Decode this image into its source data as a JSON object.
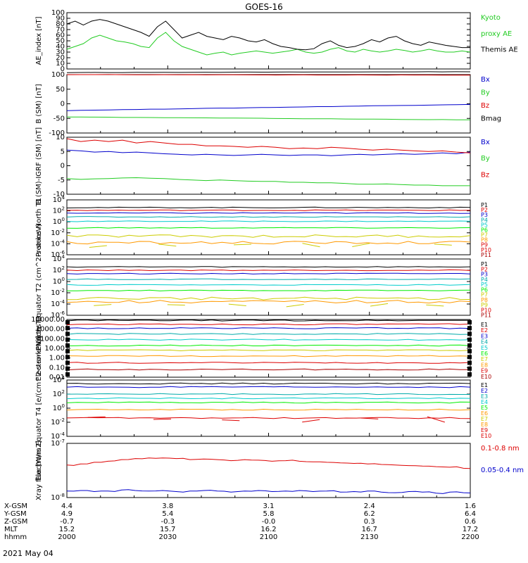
{
  "title": "GOES-16",
  "date_label": "2021 May 04",
  "colors": {
    "black": "#000000",
    "red": "#dd0000",
    "green": "#22cc22",
    "blue": "#0000cc",
    "lime": "#00ee00",
    "cyan": "#00cccc",
    "aqua": "#00dddd",
    "teal": "#00aaaa",
    "yellow": "#cccc00",
    "orange": "#ff9900",
    "darkred": "#aa0000"
  },
  "ephemeris": {
    "labels": [
      "X-GSM",
      "Y-GSM",
      "Z-GSM",
      "MLT",
      "hhmm"
    ],
    "rows": [
      [
        "4.4",
        "3.8",
        "3.1",
        "2.4",
        "1.6"
      ],
      [
        "4.9",
        "5.4",
        "5.8",
        "6.2",
        "6.4"
      ],
      [
        "-0.7",
        "-0.3",
        "-0.0",
        "0.3",
        "0.6"
      ],
      [
        "15.2",
        "15.7",
        "16.2",
        "16.7",
        "17.2"
      ],
      [
        "2000",
        "2030",
        "2100",
        "2130",
        "2200"
      ]
    ]
  },
  "chart_data": [
    {
      "type": "line",
      "ylabel": "AE_index [nT]",
      "ylim": [
        0,
        100
      ],
      "yticks": [
        "0",
        "10",
        "20",
        "30",
        "40",
        "50",
        "60",
        "70",
        "80",
        "90",
        "100"
      ],
      "series": [
        {
          "name": "Kyoto proxy AE",
          "color": "#22cc22",
          "values": [
            35,
            40,
            45,
            55,
            60,
            55,
            50,
            48,
            45,
            40,
            38,
            55,
            65,
            50,
            40,
            35,
            30,
            25,
            28,
            30,
            25,
            28,
            30,
            32,
            30,
            28,
            30,
            32,
            35,
            30,
            28,
            30,
            35,
            38,
            32,
            30,
            35,
            32,
            30,
            32,
            35,
            33,
            30,
            32,
            35,
            32,
            30,
            30,
            32,
            30
          ]
        },
        {
          "name": "Themis AE",
          "color": "#000000",
          "values": [
            80,
            85,
            78,
            85,
            88,
            85,
            80,
            75,
            70,
            65,
            58,
            75,
            85,
            70,
            55,
            60,
            65,
            58,
            55,
            52,
            58,
            55,
            50,
            48,
            52,
            45,
            40,
            38,
            35,
            34,
            36,
            45,
            50,
            42,
            38,
            40,
            45,
            52,
            48,
            55,
            58,
            50,
            45,
            42,
            48,
            45,
            42,
            40,
            38,
            38
          ]
        }
      ]
    },
    {
      "type": "line",
      "ylabel": "B (SM) [nT]",
      "ylim": [
        -100,
        100
      ],
      "yticks": [
        "-100",
        "-50",
        "0",
        "50",
        "100"
      ],
      "series": [
        {
          "name": "Bx",
          "color": "#0000cc",
          "start": -23,
          "end": -2
        },
        {
          "name": "By",
          "color": "#22cc22",
          "start": -45,
          "end": -55
        },
        {
          "name": "Bz",
          "color": "#dd0000",
          "start": 100,
          "end": 98
        },
        {
          "name": "Bmag",
          "color": "#000000",
          "start": 107,
          "end": 110
        }
      ]
    },
    {
      "type": "line",
      "ylabel": "B (SM)-IGRF (SM) [nT]",
      "ylim": [
        -10,
        10
      ],
      "yticks": [
        "-10",
        "-5",
        "0",
        "5",
        "10"
      ],
      "series": [
        {
          "name": "Bx",
          "color": "#0000cc",
          "values": [
            5.5,
            5.2,
            4.8,
            5.0,
            4.6,
            4.8,
            4.5,
            4.2,
            4.0,
            3.8,
            4.0,
            3.8,
            3.6,
            3.8,
            4.0,
            3.8,
            3.6,
            3.8,
            3.8,
            3.5,
            3.8,
            4.0,
            3.8,
            4.0,
            4.2,
            4.0,
            4.2,
            4.5,
            4.2,
            4.8
          ]
        },
        {
          "name": "By",
          "color": "#22cc22",
          "values": [
            -4.5,
            -4.8,
            -4.6,
            -4.5,
            -4.3,
            -4.2,
            -4.4,
            -4.5,
            -4.8,
            -5.0,
            -5.2,
            -5.0,
            -5.2,
            -5.4,
            -5.5,
            -5.5,
            -5.8,
            -5.8,
            -6.0,
            -6.0,
            -6.2,
            -6.5,
            -6.5,
            -6.4,
            -6.6,
            -6.8,
            -6.8,
            -7.0,
            -7.0,
            -7.0
          ]
        },
        {
          "name": "Bz",
          "color": "#dd0000",
          "values": [
            9.5,
            8.5,
            9.0,
            8.5,
            9.0,
            8.0,
            8.5,
            8.0,
            7.5,
            7.5,
            7.0,
            7.0,
            6.8,
            6.5,
            6.8,
            6.5,
            6.0,
            6.2,
            6.0,
            6.5,
            6.2,
            5.8,
            5.5,
            5.8,
            5.5,
            5.2,
            5.0,
            5.2,
            4.8,
            4.5
          ]
        }
      ]
    },
    {
      "type": "line",
      "ylabel": "Protons North T1",
      "ylim": [
        "1e-6",
        "1e4"
      ],
      "yticks": [
        "10^-6",
        "10^-4",
        "10^-2",
        "10^0",
        "10^2",
        "10^4"
      ],
      "series": [
        {
          "name": "P1",
          "color": "#000000",
          "log10": 2.6
        },
        {
          "name": "P2",
          "color": "#dd0000",
          "log10": 2.1
        },
        {
          "name": "P3",
          "color": "#0000cc",
          "log10": 1.6
        },
        {
          "name": "P4",
          "color": "#00aaaa",
          "log10": 0.9
        },
        {
          "name": "P5",
          "color": "#00cccc",
          "log10": 0.1
        },
        {
          "name": "P6",
          "color": "#00ee00",
          "log10": -1.1
        },
        {
          "name": "P7",
          "color": "#cccc00",
          "log10": -2.6
        },
        {
          "name": "P8",
          "color": "#ff9900",
          "log10": -3.8
        },
        {
          "name": "P9",
          "color": "#dd0000"
        },
        {
          "name": "P10",
          "color": "#dd0000"
        },
        {
          "name": "P11",
          "color": "#aa0000"
        }
      ]
    },
    {
      "type": "line",
      "ylabel": "Protons Equator T2 (cm^2-s-sr-keV)",
      "ylim": [
        "1e-6",
        "1e4"
      ],
      "yticks": [
        "10^-6",
        "10^-4",
        "10^-2",
        "10^0",
        "10^2",
        "10^4"
      ],
      "series": [
        {
          "name": "P1",
          "color": "#000000",
          "log10": 2.6
        },
        {
          "name": "P2",
          "color": "#dd0000",
          "log10": 2.0
        },
        {
          "name": "P3",
          "color": "#0000cc",
          "log10": 1.4
        },
        {
          "name": "P4",
          "color": "#00aaaa",
          "log10": 0.4
        },
        {
          "name": "P5",
          "color": "#00cccc",
          "log10": -0.6
        },
        {
          "name": "P6",
          "color": "#00ee00",
          "log10": -1.6
        },
        {
          "name": "P7",
          "color": "#cccc00",
          "log10": -3.0
        },
        {
          "name": "P8",
          "color": "#ff9900",
          "log10": -3.6
        },
        {
          "name": "P9",
          "color": "#cccc00"
        },
        {
          "name": "P10",
          "color": "#dd0000"
        },
        {
          "name": "P11",
          "color": "#aa0000"
        }
      ]
    },
    {
      "type": "line",
      "ylabel": "Electrons North T3",
      "ylim": [
        0.01,
        10000
      ],
      "yticks": [
        "0.01",
        "0.10",
        "1.00",
        "10.00",
        "100.00",
        "1000.00",
        "10000.00"
      ],
      "series": [
        {
          "name": "E1",
          "color": "#000000",
          "log10": 3.9
        },
        {
          "name": "E2",
          "color": "#dd0000",
          "log10": 3.5
        },
        {
          "name": "E3",
          "color": "#0000cc",
          "log10": 3.1
        },
        {
          "name": "E4",
          "color": "#00aaaa",
          "log10": 2.5
        },
        {
          "name": "E5",
          "color": "#00cccc",
          "log10": 1.9
        },
        {
          "name": "E6",
          "color": "#00ee00",
          "log10": 1.3
        },
        {
          "name": "E7",
          "color": "#cccc00",
          "log10": 0.8
        },
        {
          "name": "E8",
          "color": "#ff9900",
          "log10": 0.2
        },
        {
          "name": "E9",
          "color": "#dd0000",
          "log10": -0.5
        },
        {
          "name": "E10",
          "color": "#aa0000",
          "log10": -1.2
        }
      ]
    },
    {
      "type": "line",
      "ylabel": "Electrons Equator T4 [e/(cm^2-s-sr-keV)]",
      "ylim": [
        "1e-4",
        "1e4"
      ],
      "yticks": [
        "10^-4",
        "10^-2",
        "10^0",
        "10^2",
        "10^4"
      ],
      "series": [
        {
          "name": "E1",
          "color": "#000000",
          "log10": 3.5
        },
        {
          "name": "E2",
          "color": "#0000cc",
          "log10": 3.0
        },
        {
          "name": "E3",
          "color": "#00aaaa",
          "log10": 2.0
        },
        {
          "name": "E4",
          "color": "#00cccc",
          "log10": 1.4
        },
        {
          "name": "E5",
          "color": "#00ee00",
          "log10": 0.8
        },
        {
          "name": "E6",
          "color": "#ff9900",
          "log10": -0.2
        },
        {
          "name": "E7",
          "color": "#cccc00"
        },
        {
          "name": "E8",
          "color": "#ff9900"
        },
        {
          "name": "E9",
          "color": "#dd0000",
          "log10": -1.4
        },
        {
          "name": "E10",
          "color": "#dd0000"
        }
      ]
    },
    {
      "type": "line",
      "ylabel": "Xray flux [W/m2]",
      "ylim": [
        "1e-8",
        "1e-7"
      ],
      "yticks": [
        "10^-8",
        "10^-7"
      ],
      "series": [
        {
          "name": "0.1-0.8 nm",
          "color": "#dd0000",
          "log10_values": [
            -7.4,
            -7.38,
            -7.35,
            -7.33,
            -7.3,
            -7.28,
            -7.27,
            -7.27,
            -7.28,
            -7.3,
            -7.29,
            -7.3,
            -7.32,
            -7.3,
            -7.31,
            -7.33,
            -7.32,
            -7.33,
            -7.34,
            -7.35,
            -7.36,
            -7.37,
            -7.38,
            -7.39,
            -7.4,
            -7.41,
            -7.42,
            -7.43,
            -7.44,
            -7.46
          ]
        },
        {
          "name": "0.05-0.4 nm",
          "color": "#0000cc",
          "log10_values": [
            -7.88,
            -7.87,
            -7.89,
            -7.88,
            -7.86,
            -7.87,
            -7.88,
            -7.87,
            -7.89,
            -7.88,
            -7.87,
            -7.88,
            -7.9,
            -7.88,
            -7.87,
            -7.89,
            -7.88,
            -7.87,
            -7.89,
            -7.88,
            -7.9,
            -7.89,
            -7.88,
            -7.9,
            -7.91,
            -7.89,
            -7.9,
            -7.92,
            -7.9,
            -7.91
          ]
        }
      ]
    }
  ],
  "legends": [
    [
      {
        "text": "Kyoto",
        "color": "#22cc22"
      },
      {
        "text": "proxy AE",
        "color": "#22cc22"
      },
      {
        "text": "Themis AE",
        "color": "#000000"
      }
    ],
    [
      {
        "text": "Bx",
        "color": "#0000cc"
      },
      {
        "text": "By",
        "color": "#22cc22"
      },
      {
        "text": "Bz",
        "color": "#dd0000"
      },
      {
        "text": "Bmag",
        "color": "#000000"
      }
    ],
    [
      {
        "text": "Bx",
        "color": "#0000cc"
      },
      {
        "text": "By",
        "color": "#22cc22"
      },
      {
        "text": "Bz",
        "color": "#dd0000"
      }
    ],
    [
      {
        "text": "P1",
        "color": "#000000"
      },
      {
        "text": "P2",
        "color": "#dd0000"
      },
      {
        "text": "P3",
        "color": "#0000cc"
      },
      {
        "text": "P4",
        "color": "#00aaaa"
      },
      {
        "text": "P5",
        "color": "#00cccc"
      },
      {
        "text": "P6",
        "color": "#00ee00"
      },
      {
        "text": "P7",
        "color": "#cccc00"
      },
      {
        "text": "P8",
        "color": "#ff9900"
      },
      {
        "text": "P9",
        "color": "#dd0000"
      },
      {
        "text": "P10",
        "color": "#dd0000"
      },
      {
        "text": "P11",
        "color": "#aa0000"
      }
    ],
    [
      {
        "text": "P1",
        "color": "#000000"
      },
      {
        "text": "P2",
        "color": "#dd0000"
      },
      {
        "text": "P3",
        "color": "#0000cc"
      },
      {
        "text": "P4",
        "color": "#00aaaa"
      },
      {
        "text": "P5",
        "color": "#00cccc"
      },
      {
        "text": "P6",
        "color": "#00ee00"
      },
      {
        "text": "P7",
        "color": "#cccc00"
      },
      {
        "text": "P8",
        "color": "#ff9900"
      },
      {
        "text": "P9",
        "color": "#cccc00"
      },
      {
        "text": "P10",
        "color": "#dd0000"
      },
      {
        "text": "P11",
        "color": "#aa0000"
      }
    ],
    [
      {
        "text": "E1",
        "color": "#000000"
      },
      {
        "text": "E2",
        "color": "#dd0000"
      },
      {
        "text": "E3",
        "color": "#0000cc"
      },
      {
        "text": "E4",
        "color": "#00aaaa"
      },
      {
        "text": "E5",
        "color": "#00cccc"
      },
      {
        "text": "E6",
        "color": "#00ee00"
      },
      {
        "text": "E7",
        "color": "#cccc00"
      },
      {
        "text": "E8",
        "color": "#ff9900"
      },
      {
        "text": "E9",
        "color": "#dd0000"
      },
      {
        "text": "E10",
        "color": "#aa0000"
      }
    ],
    [
      {
        "text": "E1",
        "color": "#000000"
      },
      {
        "text": "E2",
        "color": "#0000cc"
      },
      {
        "text": "E3",
        "color": "#00aaaa"
      },
      {
        "text": "E4",
        "color": "#00cccc"
      },
      {
        "text": "E5",
        "color": "#00ee00"
      },
      {
        "text": "E6",
        "color": "#ff9900"
      },
      {
        "text": "E7",
        "color": "#cccc00"
      },
      {
        "text": "E8",
        "color": "#ff9900"
      },
      {
        "text": "E9",
        "color": "#dd0000"
      },
      {
        "text": "E10",
        "color": "#dd0000"
      }
    ],
    [
      {
        "text": "0.1-0.8 nm",
        "color": "#dd0000"
      },
      {
        "text": "0.05-0.4 nm",
        "color": "#0000cc"
      }
    ]
  ]
}
